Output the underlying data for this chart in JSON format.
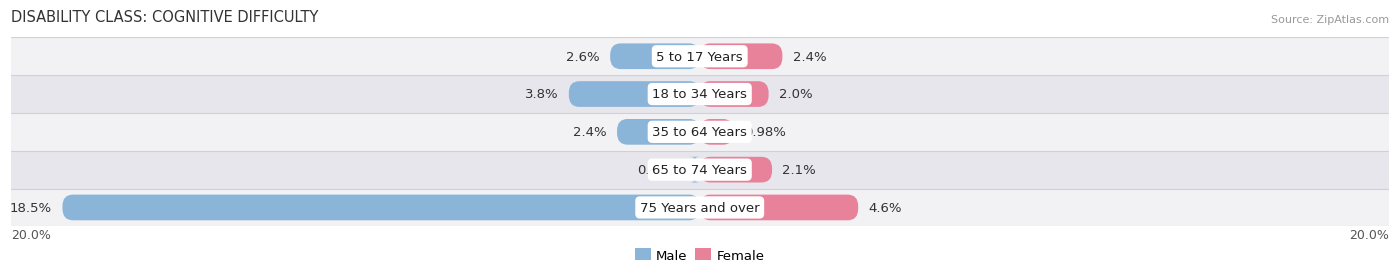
{
  "title": "DISABILITY CLASS: COGNITIVE DIFFICULTY",
  "source": "Source: ZipAtlas.com",
  "categories": [
    "5 to 17 Years",
    "18 to 34 Years",
    "35 to 64 Years",
    "65 to 74 Years",
    "75 Years and over"
  ],
  "male_values": [
    2.6,
    3.8,
    2.4,
    0.29,
    18.5
  ],
  "female_values": [
    2.4,
    2.0,
    0.98,
    2.1,
    4.6
  ],
  "male_labels": [
    "2.6%",
    "3.8%",
    "2.4%",
    "0.29%",
    "18.5%"
  ],
  "female_labels": [
    "2.4%",
    "2.0%",
    "0.98%",
    "2.1%",
    "4.6%"
  ],
  "male_color": "#8ab4d8",
  "female_color": "#e8829a",
  "axis_max": 20.0,
  "axis_label_left": "20.0%",
  "axis_label_right": "20.0%",
  "bg_color": "#ffffff",
  "row_bg_light": "#f2f2f5",
  "row_bg_dark": "#e6e6ec",
  "row_separator": "#d0d0d8",
  "title_color": "#333333",
  "source_color": "#999999",
  "label_fontsize": 9.5,
  "title_fontsize": 10.5,
  "legend_male": "Male",
  "legend_female": "Female"
}
